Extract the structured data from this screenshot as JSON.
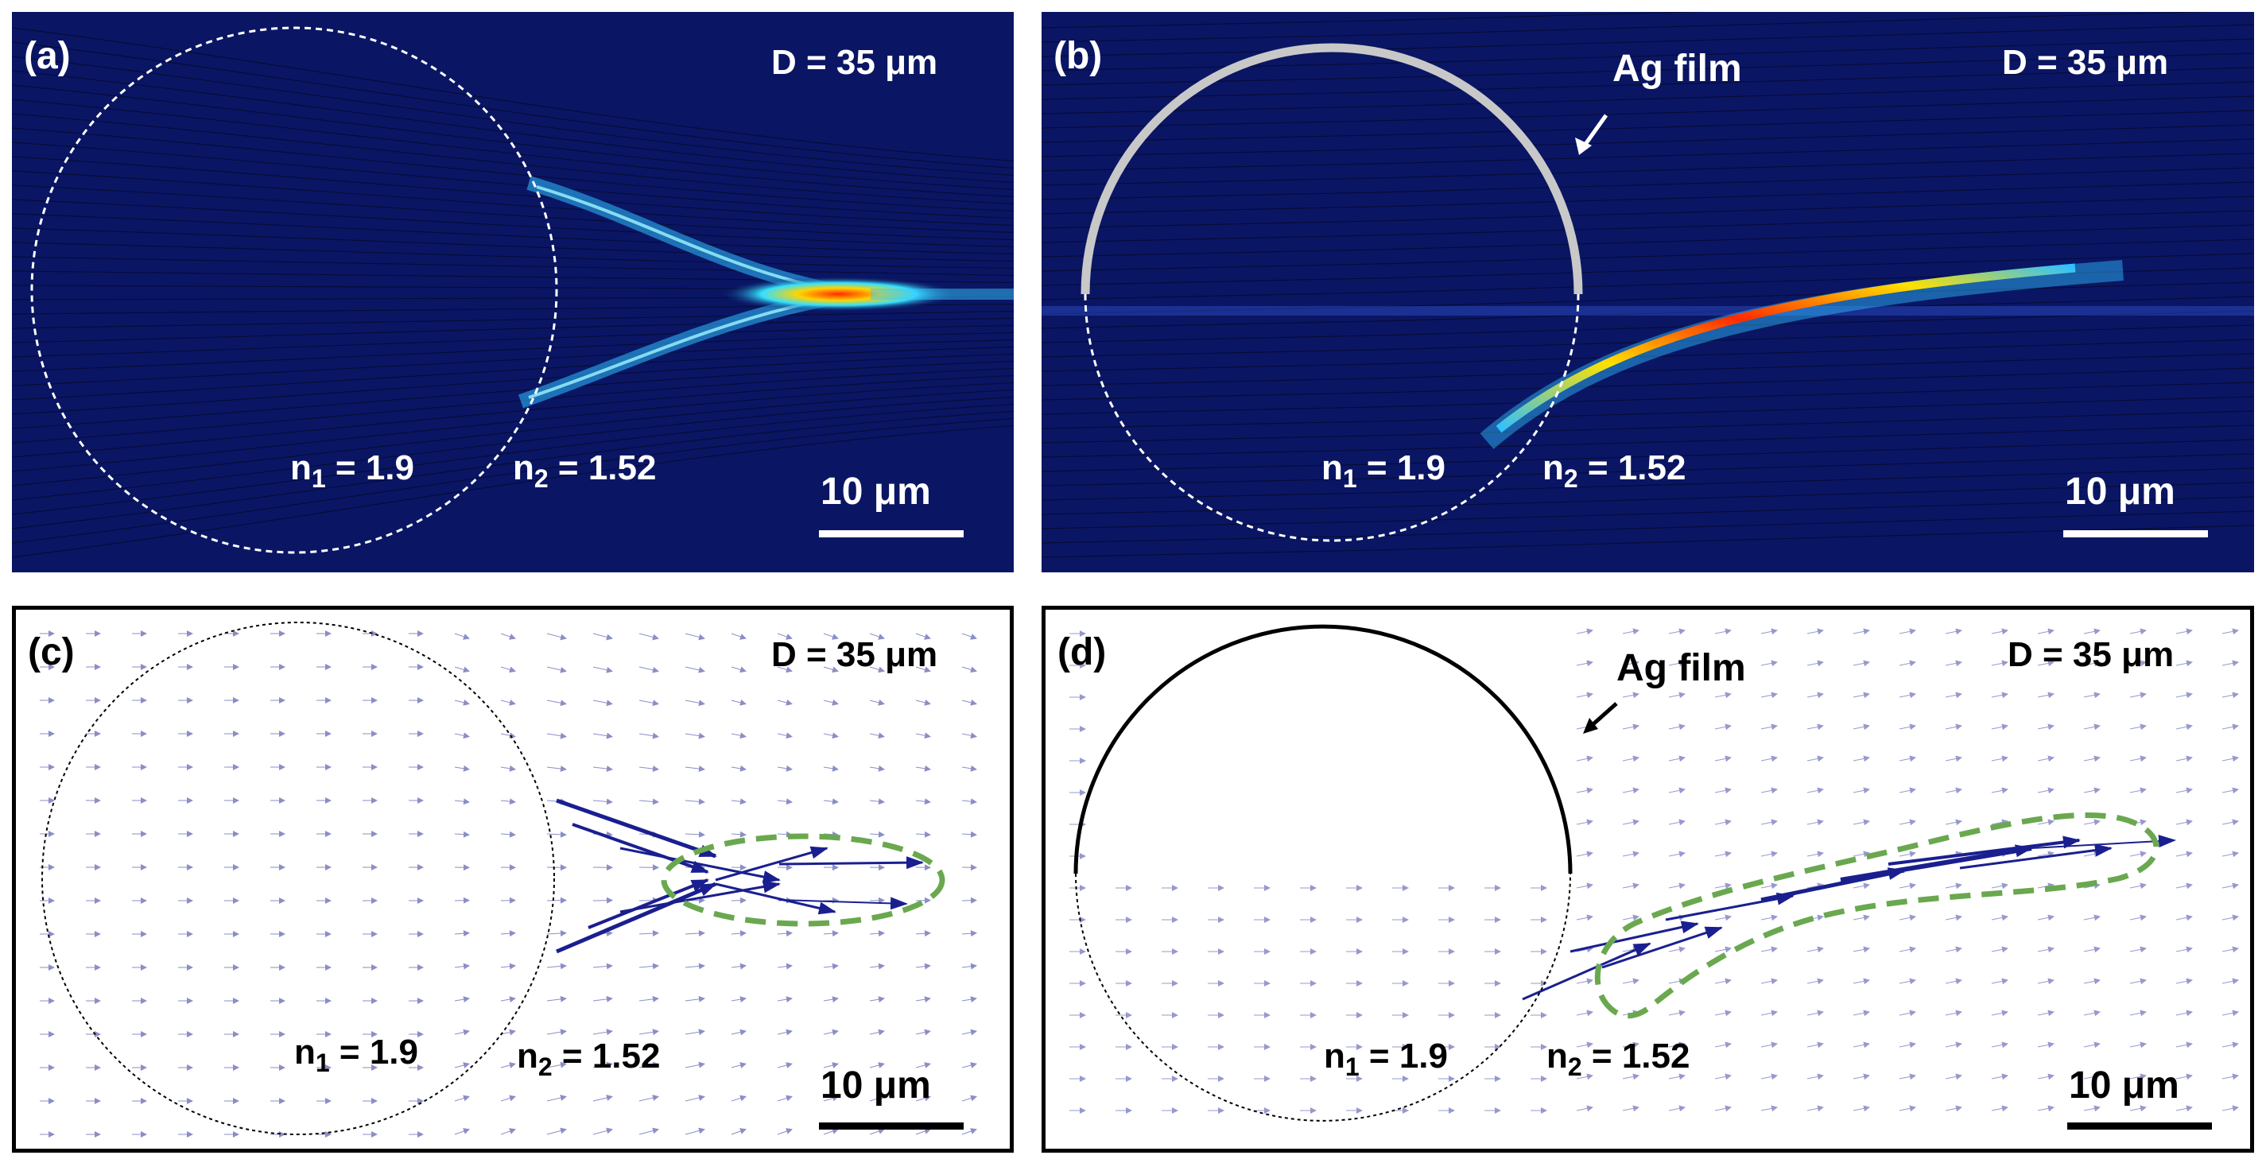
{
  "panels": {
    "a": {
      "label": "(a)",
      "diameter": "D = 35 μm",
      "n1_prefix": "n",
      "n1_sub": "1",
      "n1_value": " = 1.9",
      "n2_prefix": "n",
      "n2_sub": "2",
      "n2_value": " = 1.52",
      "scale": "10 μm"
    },
    "b": {
      "label": "(b)",
      "diameter": "D = 35 μm",
      "film": "Ag film",
      "n1_prefix": "n",
      "n1_sub": "1",
      "n1_value": " = 1.9",
      "n2_prefix": "n",
      "n2_sub": "2",
      "n2_value": " = 1.52",
      "scale": "10 μm"
    },
    "c": {
      "label": "(c)",
      "diameter": "D = 35 μm",
      "n1_prefix": "n",
      "n1_sub": "1",
      "n1_value": " = 1.9",
      "n2_prefix": "n",
      "n2_sub": "2",
      "n2_value": " = 1.52",
      "scale": "10 μm"
    },
    "d": {
      "label": "(d)",
      "diameter": "D = 35 μm",
      "film": "Ag film",
      "n1_prefix": "n",
      "n1_sub": "1",
      "n1_value": " = 1.9",
      "n2_prefix": "n",
      "n2_sub": "2",
      "n2_value": " = 1.52",
      "scale": "10 μm"
    }
  },
  "colors": {
    "field_background": "#0a1664",
    "hotspot": "#ff2a00",
    "silver_film": "#c8c8c8",
    "vector": "#1a1f8f",
    "highlight_loop": "#6aa84f"
  }
}
